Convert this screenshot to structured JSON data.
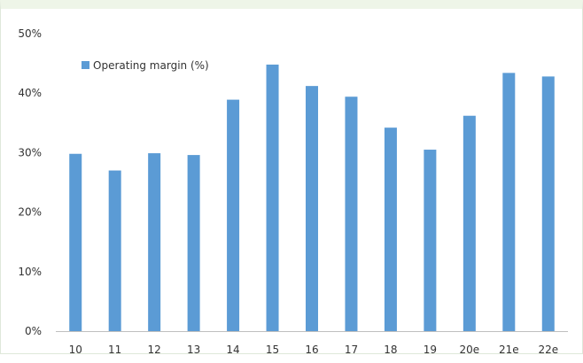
{
  "chart_data": {
    "type": "bar",
    "categories": [
      "10",
      "11",
      "12",
      "13",
      "14",
      "15",
      "16",
      "17",
      "18",
      "19",
      "20e",
      "21e",
      "22e"
    ],
    "series": [
      {
        "name": "Operating margin (%)",
        "values": [
          29.8,
          27.0,
          29.9,
          29.6,
          38.9,
          44.8,
          41.2,
          39.4,
          34.2,
          30.5,
          36.2,
          43.4,
          42.8
        ]
      }
    ],
    "ylim": [
      0,
      50
    ],
    "yticks": [
      "0%",
      "10%",
      "20%",
      "30%",
      "40%",
      "50%"
    ],
    "legend_position": "top-left",
    "grid": false,
    "colors": {
      "bar": "#5b9bd5",
      "axis": "#bfbfbf"
    }
  }
}
